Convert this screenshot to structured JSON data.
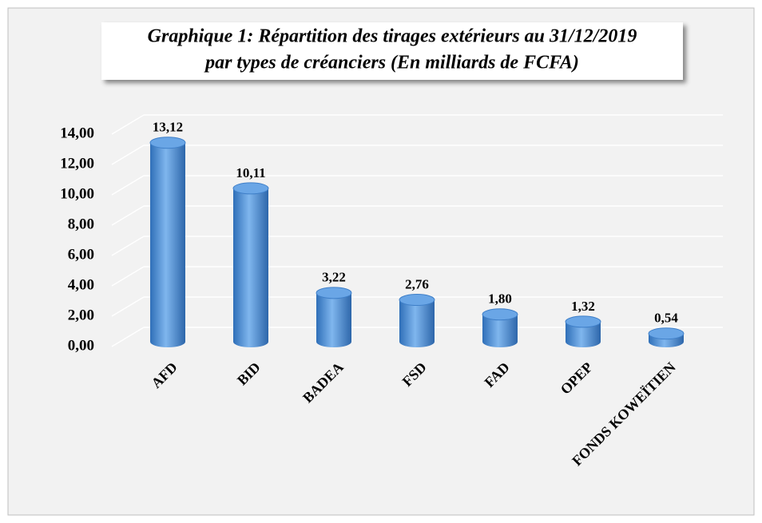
{
  "chart_data": {
    "type": "bar",
    "title": [
      "Graphique 1: Répartition des tirages extérieurs au 31/12/2019",
      "par types de créanciers (En milliards de FCFA)"
    ],
    "categories": [
      "AFD",
      "BID",
      "BADEA",
      "FSD",
      "FAD",
      "OPEP",
      "FONDS KOWEÏTIEN"
    ],
    "values": [
      13.12,
      10.11,
      3.22,
      2.76,
      1.8,
      1.32,
      0.54
    ],
    "value_labels": [
      "13,12",
      "10,11",
      "3,22",
      "2,76",
      "1,80",
      "1,32",
      "0,54"
    ],
    "color": "#4a8fd8",
    "ylim": [
      0,
      14
    ],
    "yticks": [
      {
        "value": 0,
        "label": "0,00"
      },
      {
        "value": 2,
        "label": "2,00"
      },
      {
        "value": 4,
        "label": "4,00"
      },
      {
        "value": 6,
        "label": "6,00"
      },
      {
        "value": 8,
        "label": "8,00"
      },
      {
        "value": 10,
        "label": "10,00"
      },
      {
        "value": 12,
        "label": "12,00"
      },
      {
        "value": 14,
        "label": "14,00"
      }
    ],
    "grid": true
  }
}
